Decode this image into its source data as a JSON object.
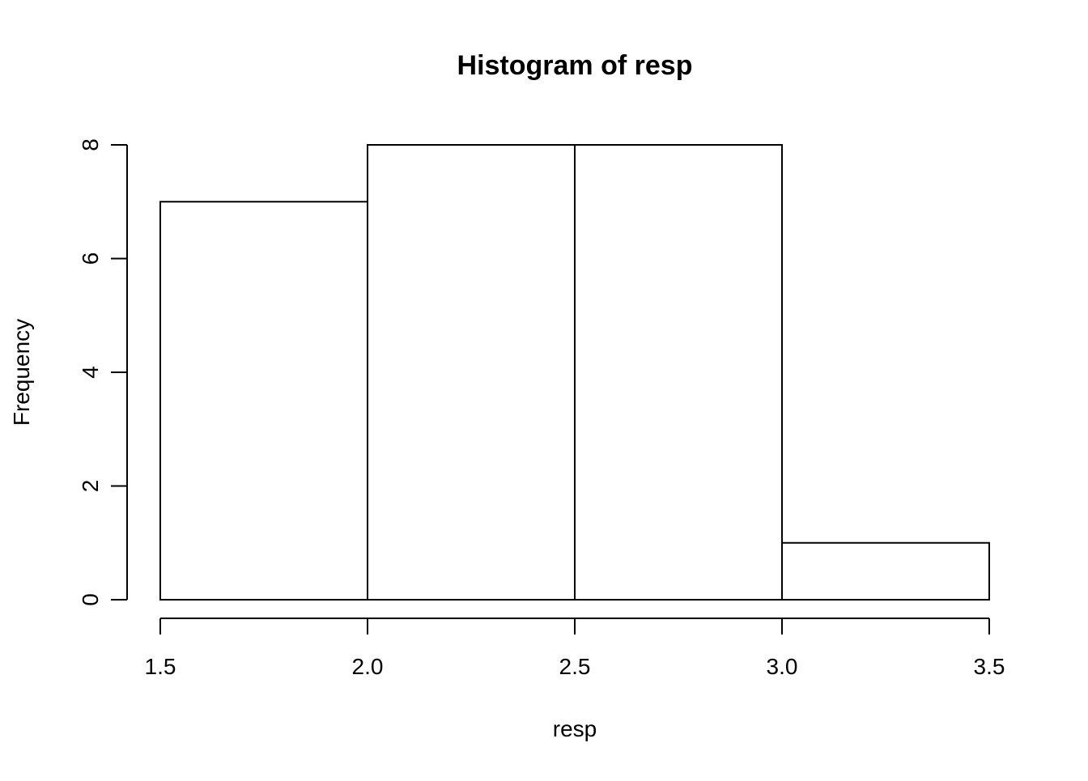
{
  "chart_data": {
    "type": "bar",
    "title": "Histogram of resp",
    "xlabel": "resp",
    "ylabel": "Frequency",
    "bins": [
      {
        "x0": 1.5,
        "x1": 2.0,
        "count": 7
      },
      {
        "x0": 2.0,
        "x1": 2.5,
        "count": 8
      },
      {
        "x0": 2.5,
        "x1": 3.0,
        "count": 8
      },
      {
        "x0": 3.0,
        "x1": 3.5,
        "count": 1
      }
    ],
    "xlim": [
      1.5,
      3.5
    ],
    "ylim": [
      0,
      8
    ],
    "x_ticks": [
      1.5,
      2.0,
      2.5,
      3.0,
      3.5
    ],
    "x_tick_labels": [
      "1.5",
      "2.0",
      "2.5",
      "3.0",
      "3.5"
    ],
    "y_ticks": [
      0,
      2,
      4,
      6,
      8
    ],
    "y_tick_labels": [
      "0",
      "2",
      "4",
      "6",
      "8"
    ],
    "grid": false,
    "legend": "none",
    "bar_fill": "#ffffff",
    "bar_stroke": "#000000"
  }
}
